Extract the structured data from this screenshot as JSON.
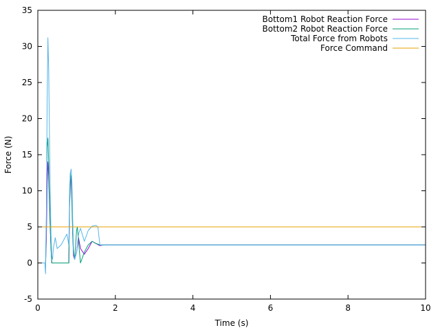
{
  "chart_data": {
    "type": "line",
    "xlabel": "Time (s)",
    "ylabel": "Force (N)",
    "xlim": [
      0,
      10
    ],
    "ylim": [
      -5,
      35
    ],
    "xticks": [
      0,
      2,
      4,
      6,
      8,
      10
    ],
    "yticks": [
      -5,
      0,
      5,
      10,
      15,
      20,
      25,
      30,
      35
    ],
    "grid": false,
    "legend": "top-right",
    "series": [
      {
        "name": "Bottom1 Robot Reaction Force",
        "color": "#9400d3",
        "x": [
          0.2,
          0.22,
          0.24,
          0.26,
          0.28,
          0.3,
          0.32,
          0.34,
          0.36,
          0.4,
          0.5,
          0.6,
          0.7,
          0.8,
          0.82,
          0.84,
          0.86,
          0.88,
          0.9,
          0.92,
          0.95,
          1.0,
          1.05,
          1.1,
          1.2,
          1.3,
          1.4,
          1.5,
          1.6,
          1.7,
          1.8,
          2.0,
          10.0
        ],
        "y": [
          0,
          3,
          11,
          14,
          12,
          8,
          5,
          2,
          0,
          0,
          0,
          0,
          0,
          0,
          8,
          11,
          12,
          10,
          4,
          1,
          0.5,
          1.5,
          3.5,
          2.0,
          1.2,
          2.0,
          3.0,
          2.7,
          2.4,
          2.5,
          2.5,
          2.5,
          2.5
        ]
      },
      {
        "name": "Bottom2 Robot Reaction Force",
        "color": "#009e73",
        "x": [
          0.2,
          0.22,
          0.24,
          0.26,
          0.28,
          0.3,
          0.32,
          0.34,
          0.36,
          0.4,
          0.5,
          0.6,
          0.7,
          0.8,
          0.82,
          0.84,
          0.86,
          0.88,
          0.9,
          0.92,
          0.95,
          1.0,
          1.02,
          1.05,
          1.1,
          1.2,
          1.3,
          1.4,
          1.5,
          1.6,
          1.7,
          1.8,
          2.0,
          10.0
        ],
        "y": [
          0,
          6,
          16,
          17.3,
          14,
          9,
          5,
          2,
          0,
          0,
          0,
          0,
          0,
          0,
          10,
          12.5,
          11.5,
          8,
          4,
          1.5,
          0.5,
          4.5,
          5.0,
          3.0,
          0,
          1.5,
          2.5,
          3.0,
          2.7,
          2.5,
          2.5,
          2.5,
          2.5,
          2.5
        ]
      },
      {
        "name": "Total Force from Robots",
        "color": "#56b4e9",
        "x": [
          0.0,
          0.18,
          0.2,
          0.22,
          0.24,
          0.26,
          0.28,
          0.3,
          0.32,
          0.34,
          0.36,
          0.38,
          0.4,
          0.45,
          0.5,
          0.6,
          0.7,
          0.75,
          0.8,
          0.82,
          0.84,
          0.86,
          0.88,
          0.9,
          0.92,
          0.95,
          1.0,
          1.05,
          1.1,
          1.2,
          1.3,
          1.4,
          1.5,
          1.55,
          1.6,
          1.8,
          2.0,
          10.0
        ],
        "y": [
          0,
          0,
          -1.5,
          6,
          22,
          31.2,
          27,
          18,
          10,
          4,
          1,
          0.5,
          2,
          3.5,
          2,
          2.5,
          3.5,
          4.0,
          2.5,
          9,
          12.5,
          13,
          11,
          6,
          2,
          0.5,
          1.5,
          4.0,
          4.8,
          3.0,
          4.5,
          5.1,
          5.2,
          5.0,
          2.5,
          2.5,
          2.5,
          2.5
        ]
      },
      {
        "name": "Force Command",
        "color": "#e69f00",
        "x": [
          0,
          10
        ],
        "y": [
          5,
          5
        ]
      }
    ]
  }
}
